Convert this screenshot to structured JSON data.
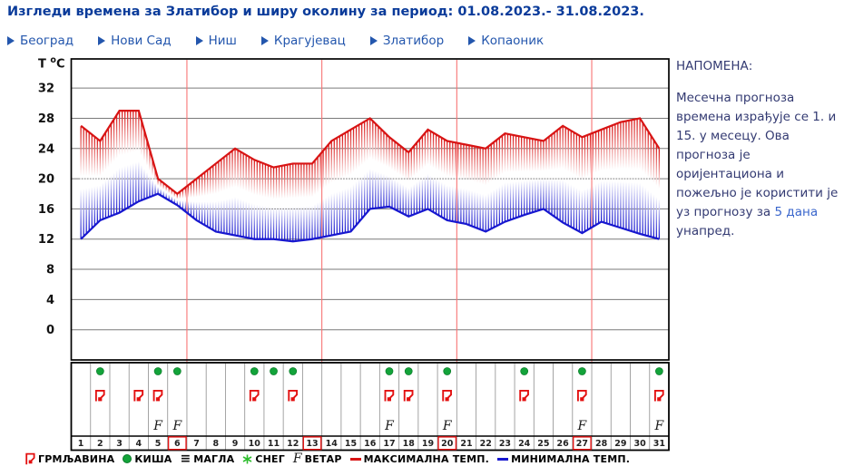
{
  "title": "Изгледи времена за Златибор и ширу околину за период: 01.08.2023.- 31.08.2023.",
  "nav": {
    "items": [
      {
        "label": "Београд"
      },
      {
        "label": "Нови Сад"
      },
      {
        "label": "Ниш"
      },
      {
        "label": "Крагујевац"
      },
      {
        "label": "Златибор"
      },
      {
        "label": "Копаоник"
      }
    ]
  },
  "note": {
    "heading": "НАПОМЕНА:",
    "body_before": "Месечна прогноза времена израђује се 1. и 15. у месецу. Ова прогноза је оријентациона и пожељно је користити је уз прогнозу за ",
    "link_text": "5 дана",
    "body_after": " унапред."
  },
  "chart_data": {
    "type": "line",
    "ylabel_t": "T",
    "ylabel_sup": "o",
    "ylabel_unit": "C",
    "days": [
      1,
      2,
      3,
      4,
      5,
      6,
      7,
      8,
      9,
      10,
      11,
      12,
      13,
      14,
      15,
      16,
      17,
      18,
      19,
      20,
      21,
      22,
      23,
      24,
      25,
      26,
      27,
      28,
      29,
      30,
      31
    ],
    "series": [
      {
        "name": "МАКСИМАЛНА ТЕМП.",
        "color": "#d81414",
        "values": [
          27,
          25,
          29,
          29,
          20,
          18,
          20,
          22,
          24,
          22.5,
          21.5,
          22,
          22,
          25,
          26.5,
          28,
          25.5,
          23.5,
          26.5,
          25,
          24.5,
          24,
          26,
          25.5,
          25,
          27,
          25.5,
          26.5,
          27.5,
          28,
          24
        ]
      },
      {
        "name": "МИНИМАЛНА ТЕМП.",
        "color": "#1717cf",
        "values": [
          12,
          14.5,
          15.5,
          17,
          18,
          16.5,
          14.5,
          13,
          12.5,
          12,
          12,
          11.7,
          12,
          12.5,
          13,
          16,
          16.3,
          15,
          16,
          14.5,
          14,
          13,
          14.3,
          15.2,
          16,
          14.2,
          12.8,
          14.3,
          13.5,
          12.7,
          12
        ]
      }
    ],
    "yticks": [
      0,
      4,
      8,
      12,
      16,
      20,
      24,
      28,
      32
    ],
    "ylim": [
      -4,
      36
    ],
    "grid": "horizontal-only",
    "week_boundaries_after_days": [
      6,
      13,
      20,
      27
    ],
    "boxed_days": [
      6,
      13,
      20,
      27
    ],
    "icons": {
      "rain_days": [
        2,
        5,
        6,
        10,
        11,
        12,
        17,
        18,
        20,
        24,
        27,
        31
      ],
      "thunder_days": [
        2,
        4,
        5,
        10,
        12,
        17,
        18,
        20,
        24,
        27,
        31
      ],
      "wind_days": [
        5,
        6,
        17,
        20,
        27,
        31
      ],
      "fog_days": [],
      "snow_days": []
    }
  },
  "legend": {
    "items": [
      {
        "icon": "thunder-icon",
        "label": "ГРМЉАВИНА"
      },
      {
        "icon": "rain-icon",
        "label": "КИША"
      },
      {
        "icon": "fog-icon",
        "label": "МАГЛА",
        "glyph": "≡"
      },
      {
        "icon": "snow-icon",
        "label": "СНЕГ"
      },
      {
        "icon": "wind-icon",
        "label": "ВЕТАР",
        "glyph": "F"
      },
      {
        "icon": "max-temp-icon",
        "label": "МАКСИМАЛНА ТЕМП."
      },
      {
        "icon": "min-temp-icon",
        "label": "МИНИМАЛНА ТЕМП."
      }
    ]
  },
  "colors": {
    "title_blue": "#0a3b9a",
    "nav_blue": "#2356ad",
    "note_text": "#333a72",
    "link_blue": "#3a66cc",
    "max_temp_red": "#d81414",
    "min_temp_blue": "#1717cf",
    "week_line_red": "#f87474",
    "rain_green": "#13a33a",
    "snow_green": "#2dbd2d",
    "thunder_red": "#e31010",
    "grid_gray": "#7a7a7a",
    "cell_sep_gray": "#9a9a9a",
    "box_red": "#e51515"
  }
}
